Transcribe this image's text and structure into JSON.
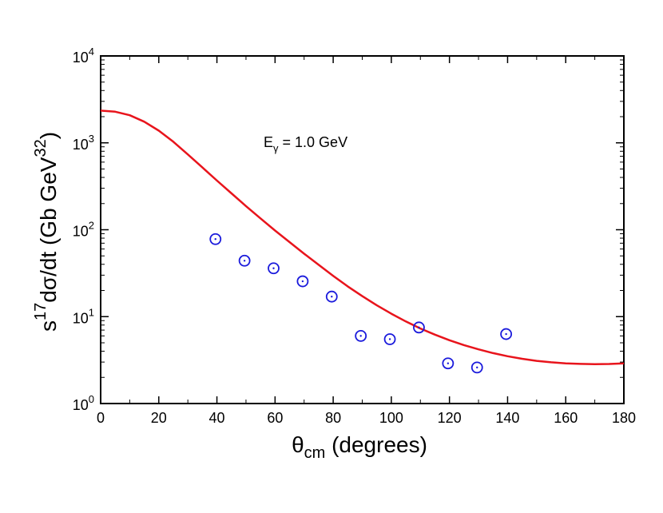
{
  "chart_data": {
    "type": "scatter",
    "xlabel": {
      "main": "θ",
      "sub": "cm",
      "rest": " (degrees)"
    },
    "ylabel": {
      "pre": "s",
      "sup1": "17",
      "mid": "dσ/dt (Gb GeV",
      "sup2": "32",
      "post": ")"
    },
    "annotation": {
      "main": "E",
      "sub": "γ",
      "rest": " = 1.0 GeV"
    },
    "xlim": [
      0,
      180
    ],
    "ylim": [
      1,
      10000
    ],
    "yscale": "log",
    "x_ticks": [
      0,
      20,
      40,
      60,
      80,
      100,
      120,
      140,
      160,
      180
    ],
    "y_ticks": [
      {
        "value": 1,
        "base": "10",
        "exp": "0"
      },
      {
        "value": 10,
        "base": "10",
        "exp": "1"
      },
      {
        "value": 100,
        "base": "10",
        "exp": "2"
      },
      {
        "value": 1000,
        "base": "10",
        "exp": "3"
      },
      {
        "value": 10000,
        "base": "10",
        "exp": "4"
      }
    ],
    "series": [
      {
        "kind": "line",
        "color": "#e8141c",
        "x": [
          0,
          5,
          10,
          15,
          20,
          25,
          30,
          35,
          40,
          45,
          50,
          55,
          60,
          65,
          70,
          75,
          80,
          85,
          90,
          95,
          100,
          105,
          110,
          115,
          120,
          125,
          130,
          135,
          140,
          145,
          150,
          155,
          160,
          165,
          170,
          175,
          180
        ],
        "y": [
          2350,
          2280,
          2080,
          1750,
          1380,
          1030,
          735,
          520,
          368,
          262,
          187,
          135,
          98,
          72,
          53,
          39.5,
          29.5,
          22.3,
          17.2,
          13.5,
          10.8,
          8.8,
          7.3,
          6.2,
          5.35,
          4.7,
          4.2,
          3.8,
          3.5,
          3.27,
          3.1,
          2.98,
          2.9,
          2.86,
          2.84,
          2.85,
          2.9
        ]
      },
      {
        "kind": "scatter",
        "marker": "circle-dot",
        "color": "#1a1adc",
        "x": [
          39.5,
          49.5,
          59.5,
          69.5,
          79.5,
          89.5,
          99.5,
          109.5,
          119.5,
          129.5,
          139.5
        ],
        "y": [
          78,
          44,
          36,
          25.5,
          17,
          6,
          5.5,
          7.5,
          2.9,
          2.6,
          6.3
        ]
      }
    ]
  }
}
